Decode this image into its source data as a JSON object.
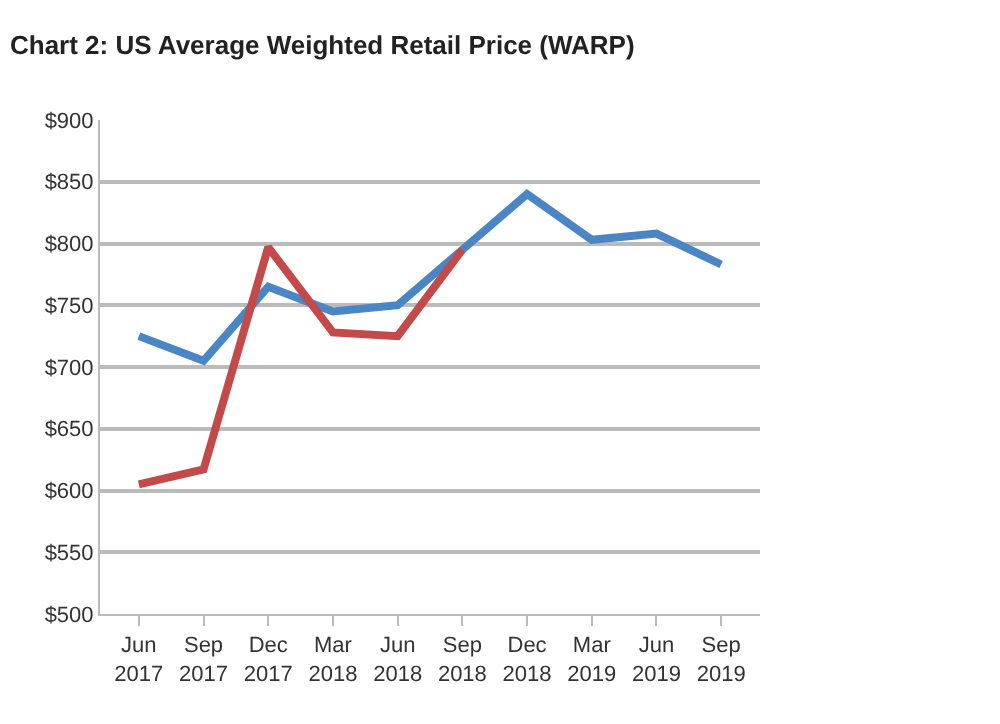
{
  "chart_data": {
    "type": "line",
    "title": "Chart 2: US Average Weighted Retail Price (WARP)",
    "categories": [
      "Jun\n2017",
      "Sep\n2017",
      "Dec\n2017",
      "Mar\n2018",
      "Jun\n2018",
      "Sep\n2018",
      "Dec\n2018",
      "Mar\n2019",
      "Jun\n2019",
      "Sep\n2019"
    ],
    "series": [
      {
        "color": "#4a86c5",
        "values": [
          725,
          705,
          765,
          745,
          750,
          795,
          840,
          803,
          808,
          783
        ]
      },
      {
        "color": "#c44a4a",
        "values": [
          605,
          617,
          797,
          728,
          725,
          795,
          null,
          null,
          null,
          null
        ]
      }
    ],
    "ylim": [
      500,
      900
    ],
    "yticks": [
      {
        "value": 500,
        "label": "$500"
      },
      {
        "value": 550,
        "label": "$550"
      },
      {
        "value": 600,
        "label": "$600"
      },
      {
        "value": 650,
        "label": "$650"
      },
      {
        "value": 700,
        "label": "$700"
      },
      {
        "value": 750,
        "label": "$750"
      },
      {
        "value": 800,
        "label": "$800"
      },
      {
        "value": 850,
        "label": "$850"
      },
      {
        "value": 900,
        "label": "$900"
      }
    ],
    "grid": "y",
    "marker": "none",
    "line_style": "solid"
  }
}
